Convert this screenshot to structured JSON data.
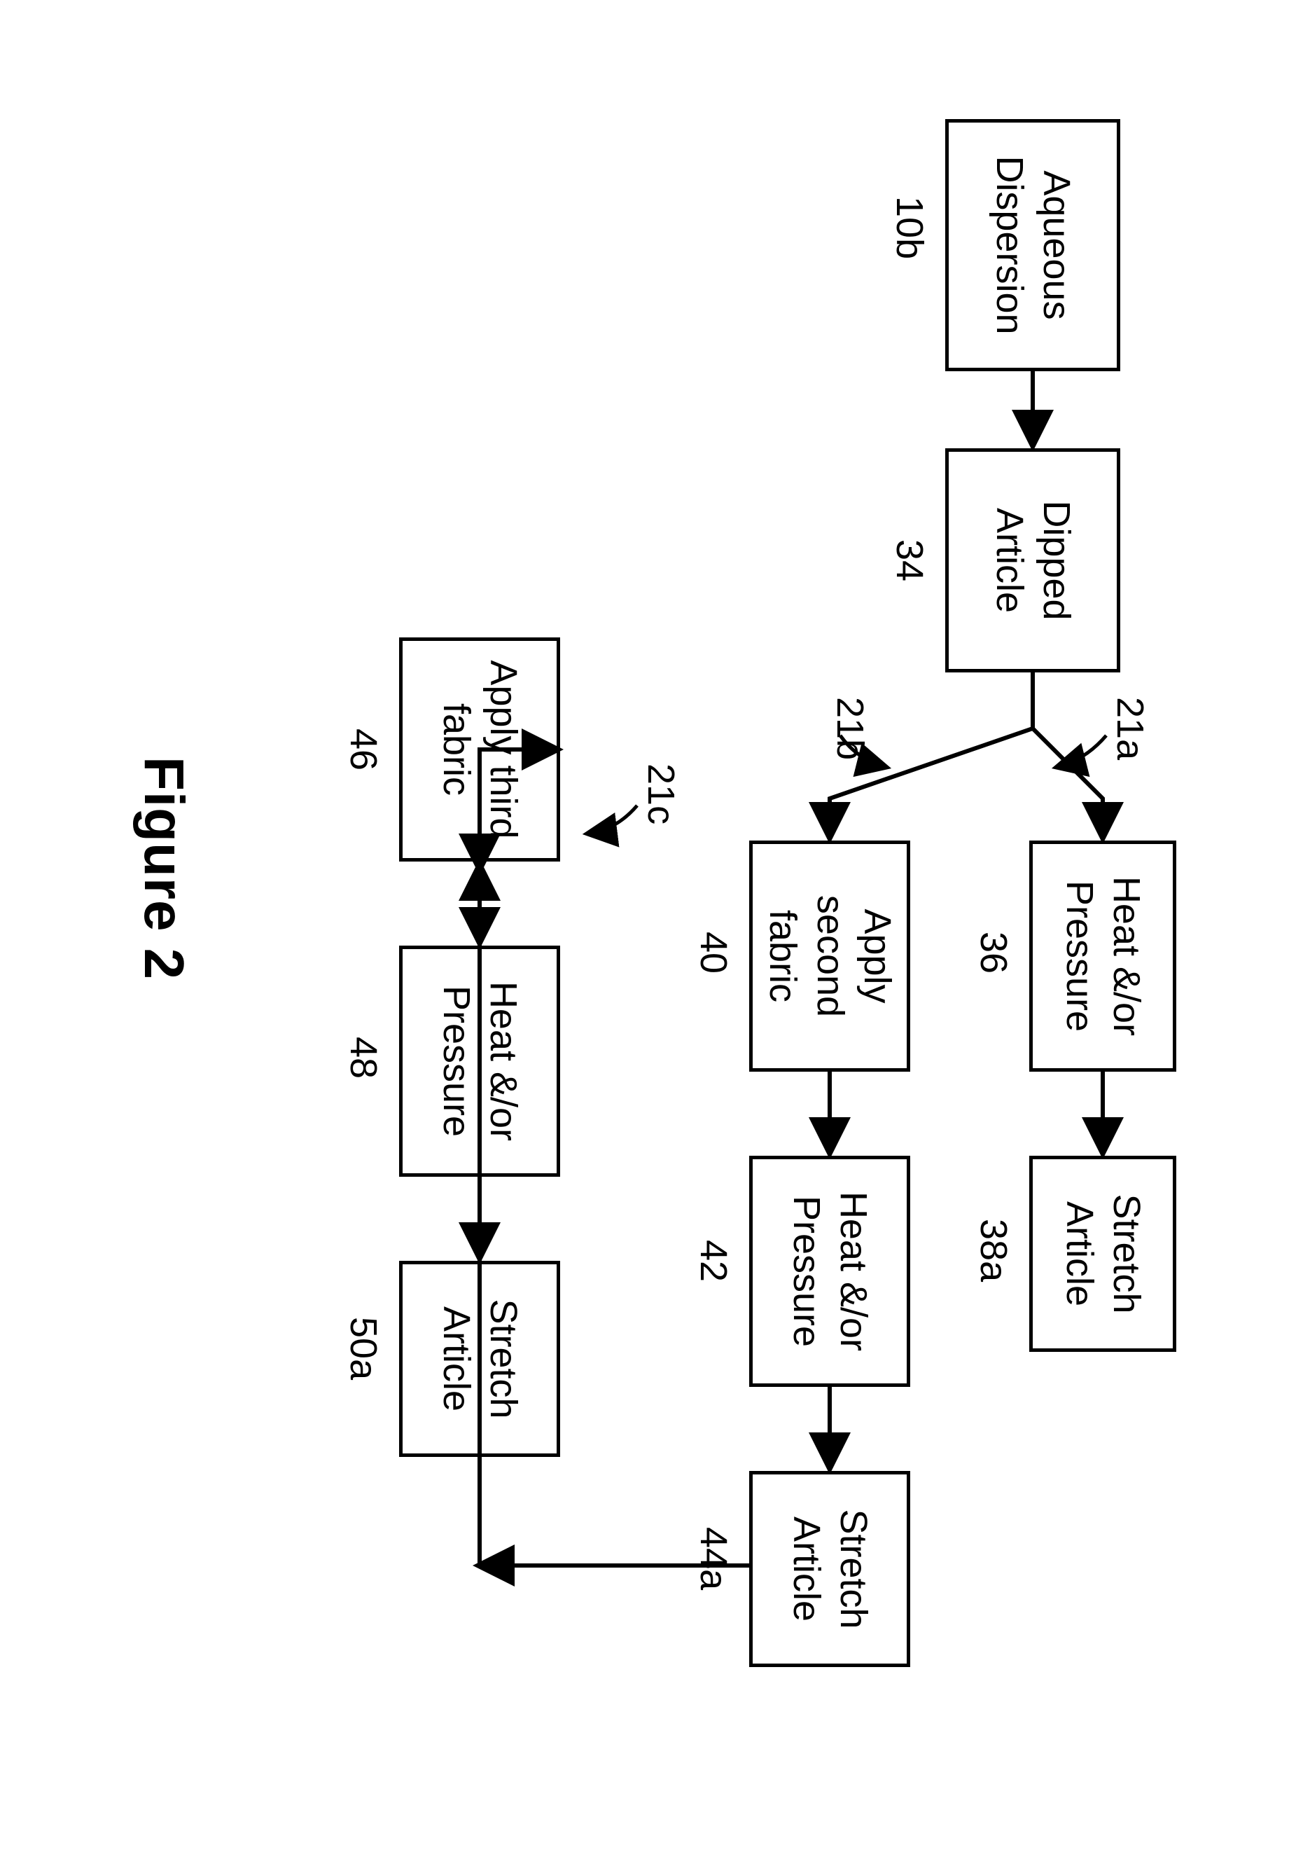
{
  "boxes": {
    "aqueous": {
      "text": "Aqueous\nDispersion",
      "ref": "10b"
    },
    "dipped": {
      "text": "Dipped\nArticle",
      "ref": "34"
    },
    "heat1": {
      "text": "Heat &/or\nPressure",
      "ref": "36"
    },
    "stretch1": {
      "text": "Stretch\nArticle",
      "ref": "38a"
    },
    "applySecond": {
      "text": "Apply\nsecond fabric",
      "ref": "40"
    },
    "heat2": {
      "text": "Heat &/or\nPressure",
      "ref": "42"
    },
    "stretch2": {
      "text": "Stretch\nArticle",
      "ref": "44a"
    },
    "applyThird": {
      "text": "Apply third\nfabric",
      "ref": "46"
    },
    "heat3": {
      "text": "Heat &/or\nPressure",
      "ref": "48"
    },
    "stretch3": {
      "text": "Stretch\nArticle",
      "ref": "50a"
    }
  },
  "branchLabels": {
    "a": "21a",
    "b": "21b",
    "c": "21c"
  },
  "figureTitle": "Figure 2",
  "style": {
    "stroke": "#000000",
    "strokeWidth": 6,
    "background": "#ffffff",
    "fontSizeBox": 54,
    "fontSizeLabel": 54,
    "fontSizeTitle": 80
  }
}
